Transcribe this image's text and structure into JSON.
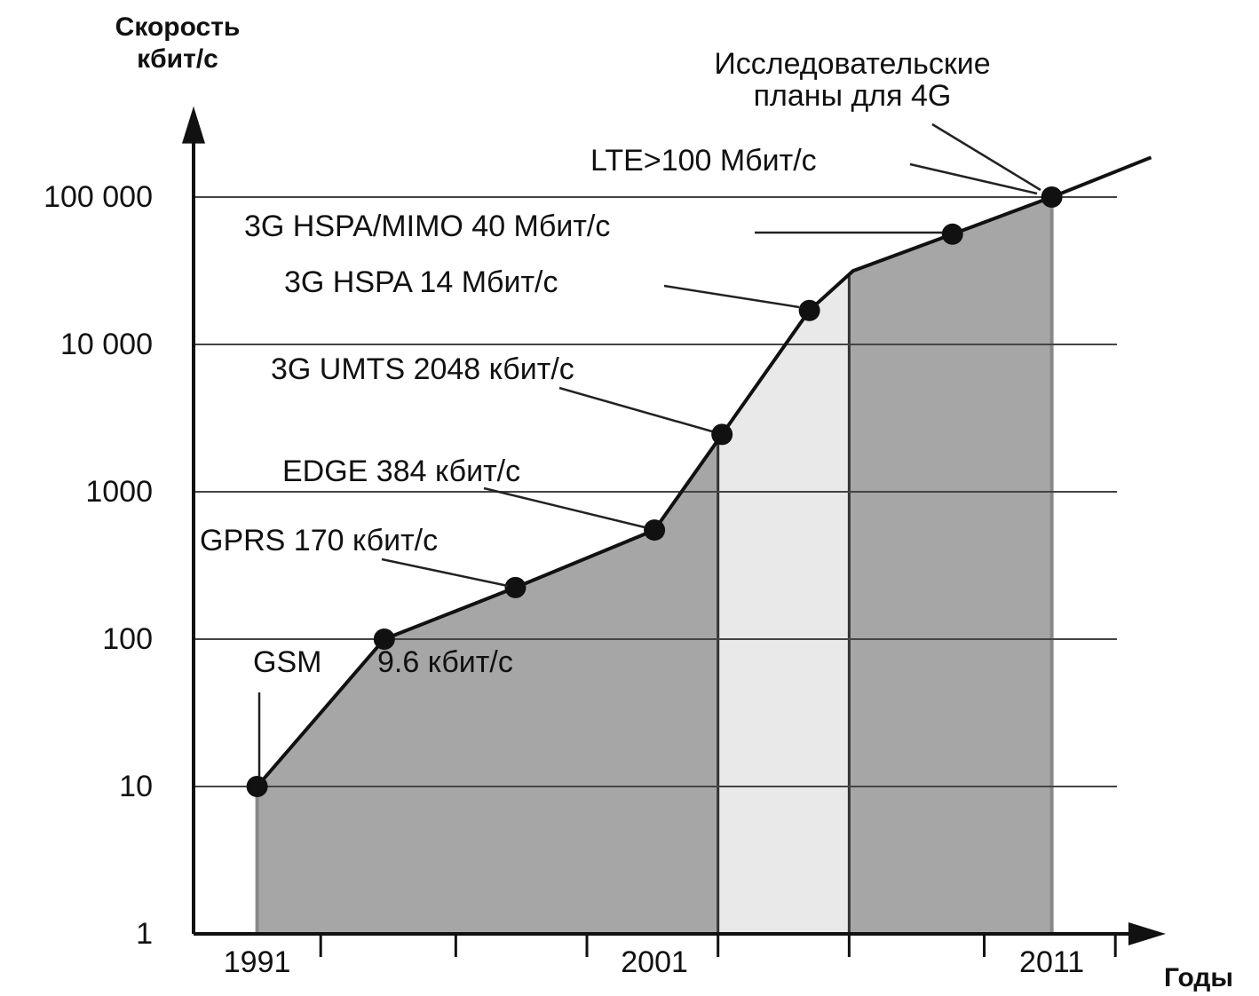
{
  "chart_data": {
    "type": "area",
    "y_label": [
      "Скорость",
      "кбит/с"
    ],
    "x_label": "Годы",
    "log_y": true,
    "grid": true,
    "ylim": [
      1,
      350000
    ],
    "yticks": [
      1,
      10,
      100,
      1000,
      {
        "value": 10000,
        "label": "10 000"
      },
      {
        "value": 100000,
        "label": "100 000"
      }
    ],
    "xlim": [
      1989.4,
      2013.6
    ],
    "xticks": [
      1991,
      2001,
      2011
    ],
    "xminorticks": [
      1992.6,
      1996,
      1999.3,
      2002.6,
      2005.9,
      2009.3,
      2012.6
    ],
    "line": {
      "color": "#111111",
      "x": [
        1991,
        1994.2,
        1997.5,
        2001,
        2002.7,
        2004.9,
        2006,
        2008.5,
        2011,
        2013.5
      ],
      "values": [
        10,
        100,
        224,
        550,
        2450,
        17000,
        31600,
        56000,
        100000,
        186000
      ]
    },
    "points": {
      "color": "#111111",
      "x": [
        1991,
        1994.2,
        1997.5,
        2001,
        2002.7,
        2004.9,
        2008.5,
        2011
      ],
      "values": [
        10,
        100,
        224,
        550,
        2450,
        17000,
        56000,
        100000
      ]
    },
    "area_end": 2011,
    "bands": [
      {
        "start": 1991,
        "end": 2002.6,
        "color": "#a6a6a6"
      },
      {
        "start": 2002.6,
        "end": 2005.9,
        "color": "#e9e9e9"
      },
      {
        "start": 2005.9,
        "end": 2011,
        "color": "#a6a6a6"
      }
    ],
    "annotations": [
      {
        "text": [
          "Исследовательские",
          "планы для 4G"
        ]
      },
      {
        "text": [
          "LTE>100 Мбит/с"
        ]
      },
      {
        "text": [
          "3G HSPA/MIMO 40 Мбит/с"
        ]
      },
      {
        "text": [
          "3G HSPA  14 Мбит/с"
        ]
      },
      {
        "text": [
          "3G UMTS  2048 кбит/с"
        ]
      },
      {
        "text": [
          "EDGE 384  кбит/с"
        ]
      },
      {
        "text": [
          "GPRS 170 кбит/с"
        ]
      },
      {
        "text": [
          "GSM"
        ]
      },
      {
        "text": [
          "9.6 кбит/с"
        ]
      }
    ]
  }
}
